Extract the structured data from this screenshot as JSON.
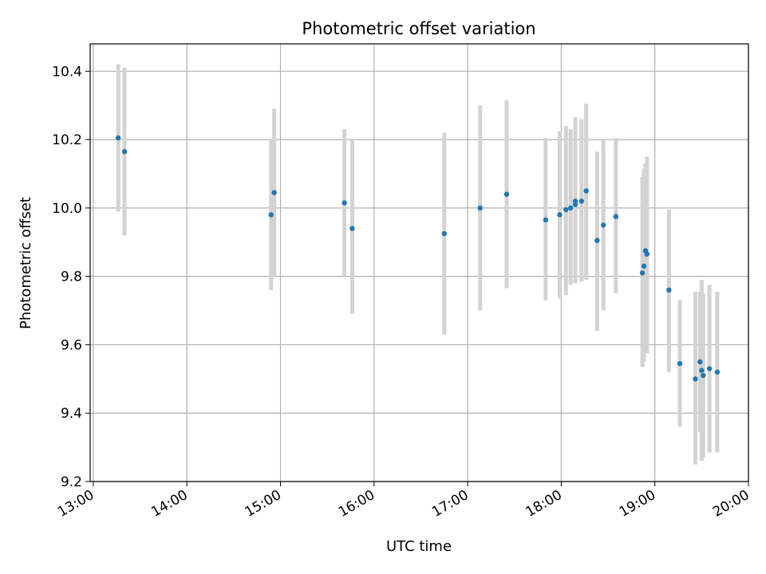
{
  "chart_data": {
    "type": "scatter",
    "title": "Photometric offset variation",
    "xlabel": "UTC time",
    "ylabel": "Photometric offset",
    "xlim": [
      "12:58",
      "20:00"
    ],
    "ylim": [
      9.2,
      10.48
    ],
    "x_ticks": [
      "13:00",
      "14:00",
      "15:00",
      "16:00",
      "17:00",
      "18:00",
      "19:00",
      "20:00"
    ],
    "y_ticks": [
      "9.2",
      "9.4",
      "9.6",
      "9.8",
      "10.0",
      "10.2",
      "10.4"
    ],
    "grid": true,
    "colors": {
      "point": "#1f77b4",
      "error_bar": "#d3d3d3",
      "grid": "#b0b0b0"
    },
    "series": [
      {
        "points": [
          {
            "time": "13:16",
            "y": 10.205,
            "err_low": 9.99,
            "err_high": 10.42
          },
          {
            "time": "13:20",
            "y": 10.165,
            "err_low": 9.92,
            "err_high": 10.41
          },
          {
            "time": "14:54",
            "y": 9.98,
            "err_low": 9.76,
            "err_high": 10.2
          },
          {
            "time": "14:56",
            "y": 10.045,
            "err_low": 9.8,
            "err_high": 10.29
          },
          {
            "time": "15:41",
            "y": 10.015,
            "err_low": 9.8,
            "err_high": 10.23
          },
          {
            "time": "15:46",
            "y": 9.94,
            "err_low": 9.69,
            "err_high": 10.2
          },
          {
            "time": "16:45",
            "y": 9.925,
            "err_low": 9.63,
            "err_high": 10.22
          },
          {
            "time": "17:08",
            "y": 10.0,
            "err_low": 9.7,
            "err_high": 10.3
          },
          {
            "time": "17:25",
            "y": 10.04,
            "err_low": 9.765,
            "err_high": 10.315
          },
          {
            "time": "17:50",
            "y": 9.965,
            "err_low": 9.73,
            "err_high": 10.205
          },
          {
            "time": "17:59",
            "y": 9.98,
            "err_low": 9.735,
            "err_high": 10.225
          },
          {
            "time": "18:03",
            "y": 9.995,
            "err_low": 9.745,
            "err_high": 10.24
          },
          {
            "time": "18:06",
            "y": 10.0,
            "err_low": 9.775,
            "err_high": 10.23
          },
          {
            "time": "18:09",
            "y": 10.02,
            "err_low": 9.78,
            "err_high": 10.265
          },
          {
            "time": "18:09",
            "y": 10.01,
            "err_low": 9.78,
            "err_high": 10.25
          },
          {
            "time": "18:13",
            "y": 10.02,
            "err_low": 9.785,
            "err_high": 10.26
          },
          {
            "time": "18:16",
            "y": 10.05,
            "err_low": 9.79,
            "err_high": 10.305
          },
          {
            "time": "18:23",
            "y": 9.905,
            "err_low": 9.64,
            "err_high": 10.165
          },
          {
            "time": "18:27",
            "y": 9.95,
            "err_low": 9.7,
            "err_high": 10.2
          },
          {
            "time": "18:35",
            "y": 9.975,
            "err_low": 9.75,
            "err_high": 10.205
          },
          {
            "time": "18:52",
            "y": 9.81,
            "err_low": 9.535,
            "err_high": 10.09
          },
          {
            "time": "18:53",
            "y": 9.83,
            "err_low": 9.55,
            "err_high": 10.115
          },
          {
            "time": "18:54",
            "y": 9.875,
            "err_low": 9.615,
            "err_high": 10.13
          },
          {
            "time": "18:55",
            "y": 9.865,
            "err_low": 9.575,
            "err_high": 10.15
          },
          {
            "time": "19:09",
            "y": 9.76,
            "err_low": 9.52,
            "err_high": 9.995
          },
          {
            "time": "19:16",
            "y": 9.545,
            "err_low": 9.36,
            "err_high": 9.73
          },
          {
            "time": "19:26",
            "y": 9.5,
            "err_low": 9.25,
            "err_high": 9.755
          },
          {
            "time": "19:29",
            "y": 9.55,
            "err_low": 9.345,
            "err_high": 9.755
          },
          {
            "time": "19:30",
            "y": 9.525,
            "err_low": 9.26,
            "err_high": 9.79
          },
          {
            "time": "19:31",
            "y": 9.51,
            "err_low": 9.27,
            "err_high": 9.75
          },
          {
            "time": "19:35",
            "y": 9.53,
            "err_low": 9.285,
            "err_high": 9.775
          },
          {
            "time": "19:40",
            "y": 9.52,
            "err_low": 9.285,
            "err_high": 9.755
          }
        ]
      }
    ]
  }
}
